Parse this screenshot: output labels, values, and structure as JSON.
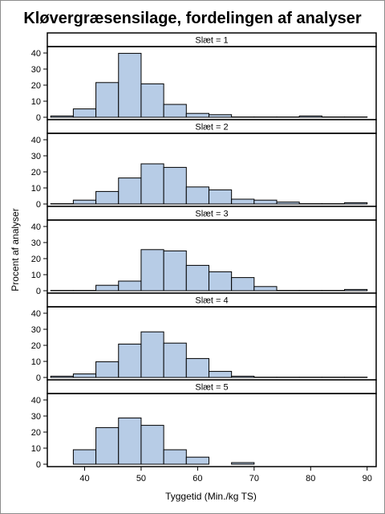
{
  "chart_data": {
    "type": "bar",
    "title": "Kløvergræsensilage, fordelingen af analyser",
    "xlabel": "Tyggetid (Min./kg TS)",
    "ylabel": "Procent af analyser",
    "xlim": [
      33.4,
      91.6
    ],
    "ylim": [
      0,
      45
    ],
    "xticks": [
      40,
      50,
      60,
      70,
      80,
      90
    ],
    "yticks": [
      0,
      10,
      20,
      30,
      40
    ],
    "bin_edges": [
      34,
      38,
      42,
      46,
      50,
      54,
      58,
      62,
      66,
      70,
      74,
      78,
      82,
      86,
      90
    ],
    "colors": {
      "bar_fill": "#b7cce6",
      "bar_edge": "#000000",
      "strip_fill": "#ffffff"
    },
    "panels": [
      {
        "label": "Slæt = 1",
        "values": [
          0.8,
          5.2,
          21.6,
          39.8,
          20.8,
          8.0,
          2.4,
          1.6,
          0.2,
          0.2,
          0.2,
          0.8,
          0.2,
          0.2
        ]
      },
      {
        "label": "Slæt = 2",
        "values": [
          0.2,
          2.4,
          7.8,
          16.2,
          25.0,
          22.8,
          10.6,
          8.8,
          3.0,
          2.4,
          1.2,
          0.2,
          0.2,
          0.8
        ]
      },
      {
        "label": "Slæt = 3",
        "values": [
          0.2,
          0.2,
          3.4,
          6.0,
          25.6,
          24.8,
          15.8,
          11.8,
          8.2,
          2.6,
          0.2,
          0.2,
          0.2,
          0.8
        ]
      },
      {
        "label": "Slæt = 4",
        "values": [
          0.8,
          2.2,
          9.8,
          20.8,
          28.4,
          21.4,
          11.8,
          3.8,
          0.8,
          0.2,
          0.2,
          0.2,
          0.2,
          0.2
        ]
      },
      {
        "label": "Slæt = 5",
        "values": [
          0,
          9.0,
          22.8,
          28.8,
          24.2,
          9.0,
          4.4,
          0,
          1.0,
          0,
          0,
          0,
          0,
          0
        ]
      }
    ]
  }
}
